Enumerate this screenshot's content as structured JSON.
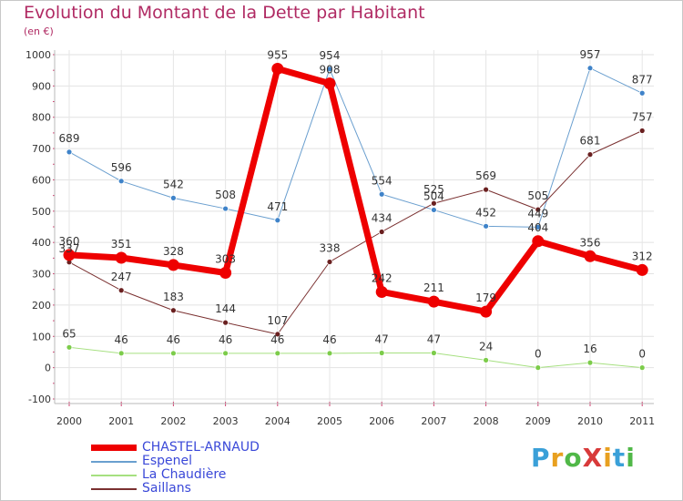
{
  "header": {
    "title": "Evolution du Montant de la Dette par Habitant",
    "subtitle": "(en €)"
  },
  "logo": {
    "text": "ProXiti",
    "letters": [
      "P",
      "r",
      "o",
      "X",
      "i",
      "t",
      "i"
    ],
    "colors": [
      "#3aa0d8",
      "#e8a020",
      "#50b848",
      "#d83a3a",
      "#e8a020",
      "#3aa0d8",
      "#50b848"
    ]
  },
  "chart_data": {
    "type": "line",
    "x": [
      "2000",
      "2001",
      "2002",
      "2003",
      "2004",
      "2005",
      "2006",
      "2007",
      "2008",
      "2009",
      "2010",
      "2011"
    ],
    "ylim": [
      -100,
      1000
    ],
    "yticks": [
      -100,
      0,
      100,
      200,
      300,
      400,
      500,
      600,
      700,
      800,
      900,
      1000
    ],
    "grid": true,
    "legend_position": "bottom-left",
    "series": [
      {
        "name": "Espenel",
        "color": "#6a9fcf",
        "marker": "#3f83c9",
        "width": 1,
        "values": [
          689,
          596,
          542,
          508,
          471,
          954,
          554,
          504,
          452,
          449,
          957,
          877
        ],
        "labels": [
          "689",
          "596",
          "542",
          "508",
          "471",
          "954",
          "554",
          "504",
          "452",
          "449",
          "957",
          "877"
        ]
      },
      {
        "name": "La Chaudière",
        "color": "#a6e080",
        "marker": "#7ccc4a",
        "width": 1,
        "values": [
          65,
          46,
          46,
          46,
          46,
          46,
          47,
          47,
          24,
          0,
          16,
          0
        ],
        "labels": [
          "65",
          "46",
          "46",
          "46",
          "46",
          "46",
          "47",
          "47",
          "24",
          "0",
          "16",
          "0"
        ]
      },
      {
        "name": "Saillans",
        "color": "#7a3030",
        "marker": "#6a2020",
        "width": 1,
        "values": [
          337,
          247,
          183,
          144,
          107,
          338,
          434,
          525,
          569,
          505,
          681,
          757
        ],
        "labels": [
          "337",
          "247",
          "183",
          "144",
          "107",
          "338",
          "434",
          "525",
          "569",
          "505",
          "681",
          "757"
        ]
      },
      {
        "name": "CHASTEL-ARNAUD",
        "color": "#ee0000",
        "marker": "#ee0000",
        "width": 7,
        "values": [
          360,
          351,
          328,
          303,
          955,
          908,
          242,
          211,
          179,
          404,
          356,
          312
        ],
        "labels": [
          "360",
          "351",
          "328",
          "303",
          "955",
          "908",
          "242",
          "211",
          "179",
          "404",
          "356",
          "312"
        ]
      }
    ]
  }
}
